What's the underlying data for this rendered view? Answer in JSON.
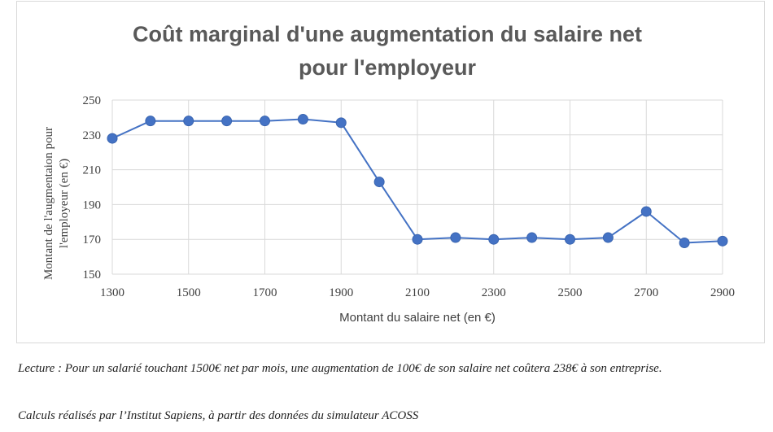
{
  "chart_data": {
    "type": "line",
    "title_line1": "Coût marginal d'une augmentation du salaire net",
    "title_line2": "pour l'employeur",
    "xlabel": "Montant du salaire net (en €)",
    "ylabel_line1": "Montant de l'augmentaion pour",
    "ylabel_line2": "l'employeur (en €)",
    "xlim": [
      1300,
      2900
    ],
    "ylim": [
      150,
      250
    ],
    "x_ticks": [
      1300,
      1500,
      1700,
      1900,
      2100,
      2300,
      2500,
      2700,
      2900
    ],
    "y_ticks": [
      150,
      170,
      190,
      210,
      230,
      250
    ],
    "grid": true,
    "series": [
      {
        "x": [
          1300,
          1400,
          1500,
          1600,
          1700,
          1800,
          1900,
          2000,
          2100,
          2200,
          2300,
          2400,
          2500,
          2600,
          2700,
          2800,
          2900
        ],
        "y": [
          228,
          238,
          238,
          238,
          238,
          239,
          237,
          203,
          170,
          171,
          170,
          171,
          170,
          171,
          186,
          168,
          169
        ],
        "color": "#4472c4"
      }
    ]
  },
  "notes": {
    "lecture": "Lecture : Pour un salarié touchant 1500€ net par mois, une augmentation de 100€ de son salaire net coûtera 238€ à son entreprise.",
    "source": "Calculs réalisés par l’Institut Sapiens, à partir des données du simulateur ACOSS"
  },
  "colors": {
    "grid": "#d9d9d9",
    "title": "#595959",
    "tick_text": "#404040"
  }
}
